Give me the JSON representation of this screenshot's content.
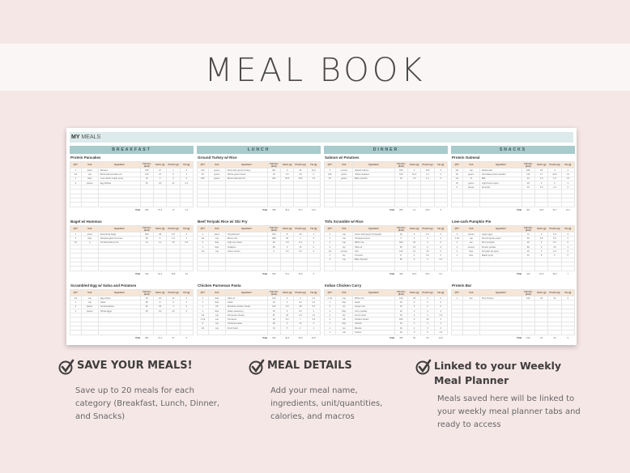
{
  "title": "MEAL BOOK",
  "sheet": {
    "title_bold": "MY",
    "title_rest": " MEALS",
    "total_label": "Total",
    "headers": [
      "QTY",
      "Unit",
      "Ingredient",
      "Calories (kcal)",
      "Carbs (g)",
      "Protein (g)",
      "Fat (g)"
    ],
    "categories": [
      {
        "name": "BREAKFAST",
        "meals": [
          {
            "name": "Protein Pancakes",
            "rows": [
              [
                "1",
                "piece",
                "Banana",
                "105",
                "27",
                "1",
                "0"
              ],
              [
                "1/2",
                "cup",
                "Buttermilk pancake mix",
                "140",
                "27",
                "5",
                "2"
              ],
              [
                "1",
                "tbsp",
                "Low calorie maple syrup",
                "10",
                "3",
                "0",
                "0"
              ],
              [
                "3",
                "pieces",
                "Egg Whites",
                "51",
                "0.6",
                "11",
                "0.2"
              ]
            ],
            "total": [
              "306",
              "57.6",
              "17",
              "2.2"
            ]
          },
          {
            "name": "Bagel w/ Hummus",
            "rows": [
              [
                "1",
                "piece",
                "Everything bagel",
                "250",
                "48",
                "9.5",
                "2"
              ],
              [
                "2",
                "tbsp",
                "Roasted garlic hummus",
                "60",
                "5",
                "1.8",
                "1"
              ],
              [
                "10",
                "g",
                "Smoked salmon lox",
                "14",
                "1.2",
                "4.5",
                "0.6"
              ]
            ],
            "total": [
              "324",
              "54.2",
              "15.8",
              "3.6"
            ]
          },
          {
            "name": "Scrambled Egg w/ Salsa and Potatoes",
            "rows": [
              [
                "1/2",
                "cup",
                "Egg whites",
                "63",
                "0.9",
                "13",
                "0"
              ],
              [
                "1",
                "cup",
                "Salsa",
                "80",
                "8",
                "0",
                "0"
              ],
              [
                "2",
                "pieces",
                "Small potatoes",
                "81",
                "18",
                "4",
                "0"
              ],
              [
                "1",
                "pieces",
                "Whole Eggs",
                "60",
                "0.2",
                "20",
                "5"
              ]
            ],
            "total": [
              "284",
              "27.1",
              "37",
              "5"
            ]
          }
        ]
      },
      {
        "name": "LUNCH",
        "meals": [
          {
            "name": "Ground Turkey w/ Rice",
            "rows": [
              [
                "140",
                "grams",
                "Extra lean ground turkey",
                "221",
                "0",
                "36",
                "10.2"
              ],
              [
                "50",
                "grams",
                "Whole green beans",
                "15",
                "3.6",
                "0.8",
                "0"
              ],
              [
                "200",
                "grams",
                "Brown basmati rice",
                "222",
                "45.6",
                "10.6",
                "4.4"
              ]
            ],
            "total": [
              "458",
              "49.2",
              "47.4",
              "14.6"
            ]
          },
          {
            "name": "Beef Teriyaki Rice w/ Stir Fry",
            "rows": [
              [
                "1",
                "piece",
                "Teriyaki beef",
                "150",
                "8",
                "20",
                "1"
              ],
              [
                "1/2",
                "cup",
                "Brown rice",
                "288",
                "60",
                "7",
                "0"
              ],
              [
                "2",
                "tbsp",
                "Light soy sauce",
                "20",
                "1.8",
                "0.3",
                "4"
              ],
              [
                "1",
                "tbsp",
                "Scallions",
                "80",
                "5",
                "15",
                "0"
              ],
              [
                "1/4",
                "cup",
                "Green onions",
                "5",
                "0.3",
                "0.2",
                "0"
              ]
            ],
            "total": [
              "543",
              "75.1",
              "42.5",
              "5"
            ]
          },
          {
            "name": "Chicken Parmesan Pasta",
            "rows": [
              [
                "3",
                "tbsp",
                "Olive oil",
                "120",
                "0",
                "0",
                "14"
              ],
              [
                "1",
                "tbsp",
                "Garlic",
                "10",
                "2",
                "0.2",
                "0.3"
              ],
              [
                "1",
                "LB",
                "Boneless chicken breast",
                "130",
                "0.3",
                "28",
                "0.2"
              ],
              [
                "1",
                "tbsp",
                "Italian seasoning",
                "25",
                "5",
                "0.2",
                "1"
              ],
              [
                "1/2",
                "cup",
                "Parmesan cheese",
                "87",
                "20",
                "2.5",
                "14"
              ],
              [
                "1 1/2",
                "cup",
                "Tomatoes",
                "20",
                "8.2",
                "1",
                "0.3"
              ],
              [
                "8",
                "cup",
                "Chickpea pasta",
                "90",
                "0",
                "13",
                "2"
              ],
              [
                "1/4",
                "cup",
                "Fresh basil",
                "10",
                "5",
                "2",
                "1"
              ]
            ],
            "total": [
              "492",
              "40.5",
              "46.9",
              "32.8"
            ]
          }
        ]
      },
      {
        "name": "DINNER",
        "meals": [
          {
            "name": "Salmon w/ Potatoes",
            "rows": [
              [
                "3",
                "ounces",
                "Atlantic salmon",
                "155",
                "0",
                "19.5",
                "5"
              ],
              [
                "100",
                "grams",
                "Yellow potatoes",
                "100",
                "19.4",
                "3.1",
                "0"
              ],
              [
                "15",
                "grams",
                "Baby spinach",
                "10",
                "1.6",
                "1.2",
                "0"
              ]
            ],
            "total": [
              "265",
              "21",
              "23.8",
              "5"
            ]
          },
          {
            "name": "Tofu Scramble w/ Rice",
            "rows": [
              [
                "1",
                "cup",
                "Green bell pepper (chopped)",
                "30",
                "6",
                "0.2",
                "0"
              ],
              [
                "1",
                "cup",
                "Chopped onions",
                "5",
                "1",
                "0",
                "0"
              ],
              [
                "1",
                "cup",
                "White rice",
                "182",
                "32",
                "3",
                "0"
              ],
              [
                "2",
                "tsp",
                "Olive oil",
                "50",
                "0.3",
                "0",
                "5"
              ],
              [
                "1/4",
                "ounces",
                "Tofu",
                "120",
                "10",
                "20",
                "0"
              ],
              [
                "1",
                "tsp",
                "Turmeric",
                "8",
                "2",
                "0.2",
                "0"
              ],
              [
                "3",
                "cup",
                "Baby Spinach",
                "50",
                "3",
                "2",
                "4.3"
              ]
            ],
            "total": [
              "445",
              "54.3",
              "25.4",
              "9.3"
            ]
          },
          {
            "name": "Indian Chicken Curry",
            "rows": [
              [
                "2 1/2",
                "cup",
                "White rice",
                "120",
                "28",
                "0",
                "0"
              ],
              [
                "1",
                "tbsp",
                "Garlic",
                "15",
                "3",
                "0",
                "0"
              ],
              [
                "2",
                "tsp",
                "Ginger root",
                "15",
                "3",
                "2",
                "0"
              ],
              [
                "1",
                "tbsp",
                "Curry powder",
                "20",
                "3",
                "4",
                "2"
              ],
              [
                "1",
                "tsp",
                "Cumin seed",
                "15",
                "2",
                "4",
                "4.3"
              ],
              [
                "2",
                "LB",
                "Chicken breast",
                "180",
                "0",
                "33",
                "2"
              ],
              [
                "1",
                "tbsp",
                "Cilantro",
                "20",
                "2",
                "4",
                "2"
              ],
              [
                "1",
                "tsp",
                "Masala",
                "20",
                "2",
                "3",
                "0"
              ],
              [
                "1",
                "cup",
                "Onions",
                "40",
                "9",
                "0",
                "4.3"
              ]
            ],
            "total": [
              "445",
              "52",
              "50",
              "14.6"
            ]
          }
        ]
      },
      {
        "name": "SNACKS",
        "meals": [
          {
            "name": "Protein Oatmeal",
            "rows": [
              [
                "3/4",
                "cup",
                "Rolled oats",
                "180",
                "34",
                "4",
                "4"
              ],
              [
                "30",
                "grams",
                "Chocolate protein powder",
                "130",
                "2.7",
                "24.8",
                "1.2"
              ],
              [
                "1/4",
                "ml",
                "Milk",
                "24",
                "1.6",
                "1.5",
                "1.2"
              ],
              [
                "15",
                "grams",
                "Light brown sugar",
                "35",
                "4",
                "2",
                "4"
              ],
              [
                "5",
                "pieces",
                "Almonds",
                "32",
                "2.5",
                "2.4",
                "0"
              ]
            ],
            "total": [
              "401",
              "44.8",
              "34.7",
              "10.4"
            ]
          },
          {
            "name": "Low-carb Pumpkin Pie",
            "rows": [
              [
                "2",
                "pieces",
                "Large eggs",
                "72",
                "0",
                "6.3",
                "5"
              ],
              [
                "1 1/2",
                "cup",
                "Non-fat greek yogurt",
                "90",
                "6.5",
                "8.2",
                "0"
              ],
              [
                "1",
                "can",
                "Pure pumpkin",
                "20",
                "6",
                "0.2",
                "0"
              ],
              [
                "4",
                "scoops",
                "Protein powder",
                "80",
                "0",
                "20",
                "2"
              ],
              [
                "2",
                "tbsp",
                "Pumpkin pie spice",
                "20",
                "2",
                "0.2",
                "0"
              ],
              [
                "1",
                "tbsp",
                "Maple syrup",
                "31",
                "8",
                "0",
                "0"
              ]
            ],
            "total": [
              "313",
              "22.5",
              "34.9",
              "7"
            ]
          },
          {
            "name": "Protein Bar",
            "rows": [
              [
                "1",
                "bar",
                "Pure Protein",
                "190",
                "18",
                "20",
                "5"
              ]
            ],
            "total": [
              "190",
              "18",
              "20",
              "5"
            ]
          }
        ]
      }
    ]
  },
  "features": [
    {
      "title": "SAVE YOUR MEALS!",
      "text": "Save up to 20 meals for each category (Breakfast, Lunch, Dinner, and Snacks)"
    },
    {
      "title": "MEAL DETAILS",
      "text": "Add your meal name, ingredients, unit/quantities, calories, and macros"
    },
    {
      "title": "Linked to your Weekly Meal Planner",
      "text": "Meals saved here will be linked to your weekly meal planner tabs and ready to access"
    }
  ],
  "colors": {
    "background": "#f6e7e7",
    "category_header": "#a8cbcd",
    "table_header": "#f7e5d5",
    "title_bar": "#dceaeb"
  }
}
